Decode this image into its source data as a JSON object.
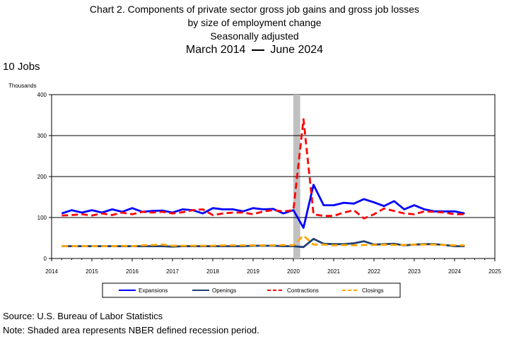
{
  "header": {
    "title_line1": "Chart 2. Components of private sector gross job gains and gross job losses",
    "title_line2": "by size of employment change",
    "title_line3": "Seasonally adjusted",
    "date_start": "March 2014",
    "date_end": "June 2024"
  },
  "sublabel": "10 Jobs",
  "footer": {
    "source": "Source: U.S. Bureau of Labor Statistics",
    "note": "Note: Shaded area represents NBER defined recession period."
  },
  "chart_data": {
    "type": "line",
    "xlabel": "",
    "ylabel": "Thousands",
    "xlim": [
      2014,
      2025
    ],
    "ylim": [
      0,
      400
    ],
    "x_ticks": [
      "2014",
      "2015",
      "2016",
      "2017",
      "2018",
      "2019",
      "2020",
      "2021",
      "2022",
      "2023",
      "2024",
      "2025"
    ],
    "y_ticks": [
      0,
      100,
      200,
      300,
      400
    ],
    "grid": true,
    "legend_placement": "bottom",
    "recession": [
      2020.0,
      2020.17
    ],
    "x": [
      2014.25,
      2014.5,
      2014.75,
      2015.0,
      2015.25,
      2015.5,
      2015.75,
      2016.0,
      2016.25,
      2016.5,
      2016.75,
      2017.0,
      2017.25,
      2017.5,
      2017.75,
      2018.0,
      2018.25,
      2018.5,
      2018.75,
      2019.0,
      2019.25,
      2019.5,
      2019.75,
      2020.0,
      2020.25,
      2020.5,
      2020.75,
      2021.0,
      2021.25,
      2021.5,
      2021.75,
      2022.0,
      2022.25,
      2022.5,
      2022.75,
      2023.0,
      2023.25,
      2023.5,
      2023.75,
      2024.0,
      2024.25
    ],
    "series": [
      {
        "name": "Expansions",
        "color": "#0000ff",
        "dash": "solid",
        "width": 2.8,
        "values": [
          110,
          118,
          112,
          118,
          112,
          120,
          114,
          123,
          114,
          116,
          117,
          112,
          120,
          118,
          110,
          123,
          120,
          120,
          115,
          123,
          120,
          121,
          110,
          118,
          75,
          180,
          130,
          130,
          136,
          134,
          145,
          137,
          128,
          140,
          120,
          130,
          120,
          115,
          115,
          115,
          110
        ]
      },
      {
        "name": "Openings",
        "color": "#1f3f73",
        "dash": "solid",
        "width": 2.8,
        "values": [
          30,
          30,
          30,
          30,
          30,
          30,
          30,
          30,
          30,
          30,
          30,
          29,
          30,
          30,
          30,
          30,
          30,
          30,
          30,
          31,
          31,
          31,
          30,
          30,
          28,
          48,
          36,
          35,
          35,
          37,
          42,
          34,
          35,
          36,
          32,
          34,
          35,
          35,
          33,
          30,
          30
        ]
      },
      {
        "name": "Contractions",
        "color": "#ff0000",
        "dash": "dashed",
        "width": 2.8,
        "values": [
          105,
          106,
          108,
          105,
          110,
          106,
          112,
          108,
          114,
          112,
          114,
          110,
          113,
          118,
          120,
          106,
          110,
          112,
          112,
          108,
          115,
          118,
          115,
          118,
          340,
          108,
          104,
          104,
          112,
          118,
          98,
          108,
          122,
          116,
          110,
          108,
          115,
          114,
          112,
          108,
          108
        ]
      },
      {
        "name": "Closings",
        "color": "#ffa500",
        "dash": "dashed",
        "width": 2.8,
        "values": [
          30,
          30,
          30,
          30,
          30,
          30,
          31,
          30,
          32,
          33,
          34,
          31,
          31,
          31,
          31,
          31,
          32,
          32,
          32,
          32,
          32,
          32,
          33,
          32,
          56,
          34,
          34,
          32,
          33,
          32,
          33,
          33,
          34,
          33,
          33,
          34,
          34,
          34,
          33,
          32,
          32
        ]
      }
    ]
  }
}
